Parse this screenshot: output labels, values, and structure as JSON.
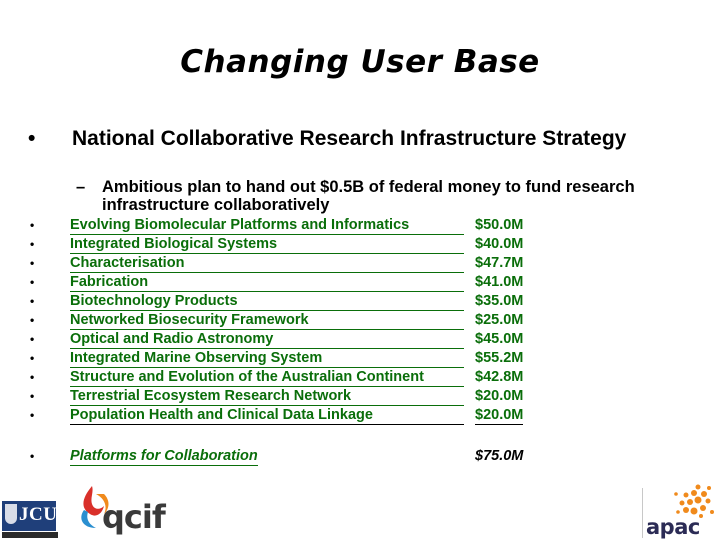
{
  "title": "Changing User Base",
  "main_bullet": {
    "marker": "•",
    "text": "National Collaborative Research Infrastructure Strategy"
  },
  "sub_bullet": {
    "marker": "–",
    "text": "Ambitious plan to hand out $0.5B of federal money to fund research infrastructure collaboratively"
  },
  "table": {
    "marker": "•",
    "rows": [
      {
        "label": "Evolving Biomolecular Platforms and Informatics",
        "value": "$50.0M"
      },
      {
        "label": "Integrated Biological Systems",
        "value": "$40.0M"
      },
      {
        "label": "Characterisation",
        "value": "$47.7M"
      },
      {
        "label": "Fabrication",
        "value": "$41.0M"
      },
      {
        "label": "Biotechnology Products",
        "value": "$35.0M"
      },
      {
        "label": "Networked Biosecurity Framework",
        "value": "$25.0M"
      },
      {
        "label": "Optical and Radio Astronomy",
        "value": "$45.0M"
      },
      {
        "label": "Integrated Marine Observing System",
        "value": "$55.2M"
      },
      {
        "label": "Structure and Evolution of the Australian Continent",
        "value": "$42.8M"
      },
      {
        "label": "Terrestrial Ecosystem Research Network",
        "value": "$20.0M"
      },
      {
        "label": "Population Health and Clinical Data Linkage",
        "value": "$20.0M"
      }
    ],
    "collaboration": {
      "label": "Platforms for Collaboration",
      "value": "$75.0M"
    }
  },
  "logos": {
    "jcu": {
      "text": "JCU",
      "icon": "jcu-crest-icon"
    },
    "qcif": {
      "text": "qcif",
      "icon": "qcif-swoosh-icon"
    },
    "apac": {
      "text": "apac",
      "icon": "apac-sunburst-icon"
    }
  },
  "colors": {
    "link_green": "#0a6e0a",
    "jcu_blue": "#1f3f7a",
    "apac_orange": "#f08a1c",
    "qcif_red": "#d9302a",
    "qcif_blue": "#2a8fd0"
  }
}
